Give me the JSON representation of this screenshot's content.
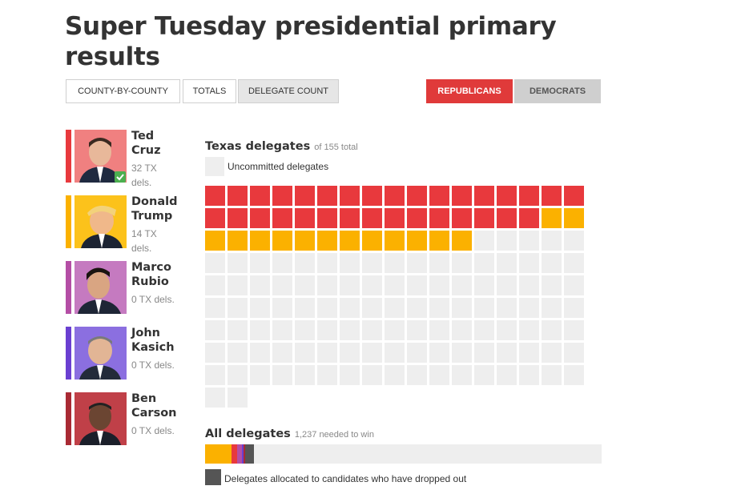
{
  "page": {
    "title": "Super Tuesday presidential primary results"
  },
  "view_tabs": [
    {
      "label": "COUNTY-BY-COUNTY",
      "active": false
    },
    {
      "label": "TOTALS",
      "active": false
    },
    {
      "label": "DELEGATE COUNT",
      "active": true
    }
  ],
  "party_tabs": [
    {
      "label": "REPUBLICANS",
      "active": true
    },
    {
      "label": "DEMOCRATS",
      "active": false
    }
  ],
  "candidates": [
    {
      "first": "Ted",
      "last": "Cruz",
      "dels": "32 TX dels.",
      "color": "#e8393d",
      "winner": true,
      "photo_bg": "#f08080"
    },
    {
      "first": "Donald",
      "last": "Trump",
      "dels": "14 TX dels.",
      "color": "#fbb100",
      "winner": false,
      "photo_bg": "#fcc21b"
    },
    {
      "first": "Marco",
      "last": "Rubio",
      "dels": "0 TX dels.",
      "color": "#b44ea5",
      "winner": false,
      "photo_bg": "#c57ac0"
    },
    {
      "first": "John",
      "last": "Kasich",
      "dels": "0 TX dels.",
      "color": "#6a3fd1",
      "winner": false,
      "photo_bg": "#8b6fe0"
    },
    {
      "first": "Ben",
      "last": "Carson",
      "dels": "0 TX dels.",
      "color": "#a92a34",
      "winner": false,
      "photo_bg": "#c04048"
    }
  ],
  "texas": {
    "title": "Texas delegates",
    "subtitle": "of 155 total",
    "total": 155,
    "legend_label": "Uncommitted delegates",
    "allocations": [
      {
        "candidate": "Ted Cruz",
        "count": 32,
        "color": "#e8393d"
      },
      {
        "candidate": "Donald Trump",
        "count": 14,
        "color": "#fbb100"
      }
    ],
    "uncommitted_color": "#eeeeee"
  },
  "all_delegates": {
    "title": "All delegates",
    "subtitle": "1,237 needed to win",
    "needed": 1237,
    "segments": [
      {
        "name": "Donald Trump",
        "value": 82,
        "color": "#fbb100"
      },
      {
        "name": "Ted Cruz",
        "value": 17,
        "color": "#e8393d"
      },
      {
        "name": "Marco Rubio",
        "value": 16,
        "color": "#b44ea5"
      },
      {
        "name": "John Kasich",
        "value": 6,
        "color": "#6a3fd1"
      },
      {
        "name": "Ben Carson",
        "value": 4,
        "color": "#a92a34"
      },
      {
        "name": "Dropped out",
        "value": 28,
        "color": "#555555"
      }
    ],
    "legend_label": "Delegates allocated to candidates who have dropped out",
    "legend_color": "#555555"
  }
}
